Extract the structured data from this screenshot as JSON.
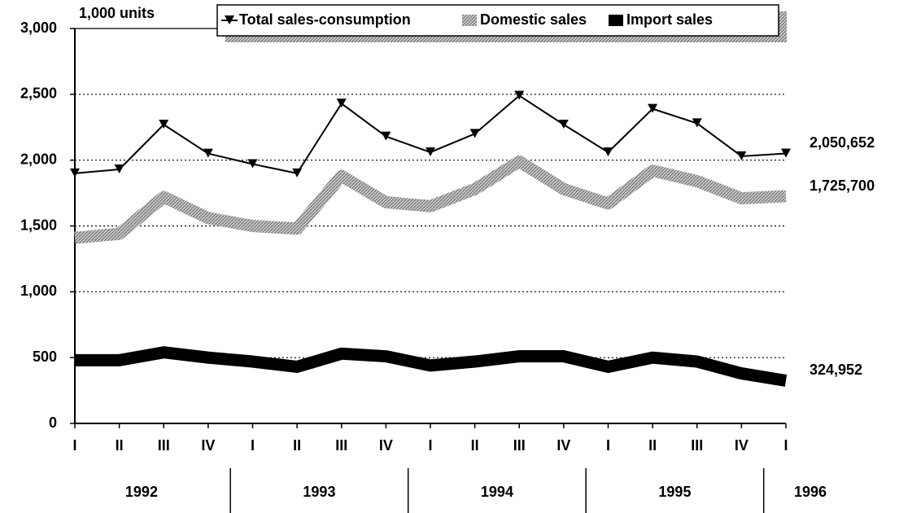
{
  "chart_data": {
    "type": "line",
    "y_label": "1,000 units",
    "categories": [
      "I",
      "II",
      "III",
      "IV",
      "I",
      "II",
      "III",
      "IV",
      "I",
      "II",
      "III",
      "IV",
      "I",
      "II",
      "III",
      "IV",
      "I"
    ],
    "years": [
      "1992",
      null,
      null,
      null,
      "1993",
      null,
      null,
      null,
      "1994",
      null,
      null,
      null,
      "1995",
      null,
      null,
      null,
      "1996"
    ],
    "series": [
      {
        "name": "Total sales-consumption",
        "color": "#000000",
        "line_style": "thin",
        "marker": "triangle-down",
        "values": [
          1900,
          1930,
          2270,
          2050,
          1970,
          1900,
          2430,
          2180,
          2060,
          2200,
          2490,
          2270,
          2060,
          2390,
          2280,
          2030,
          2050.652
        ],
        "end_label": "2,050,652"
      },
      {
        "name": "Domestic sales",
        "color": "#a0a0a0",
        "line_style": "thick",
        "marker": "none",
        "values": [
          1410,
          1440,
          1720,
          1560,
          1500,
          1480,
          1880,
          1680,
          1650,
          1780,
          1990,
          1780,
          1670,
          1920,
          1840,
          1710,
          1725.7
        ],
        "end_label": "1,725,700"
      },
      {
        "name": "Import sales",
        "color": "#000000",
        "line_style": "thick",
        "marker": "none",
        "values": [
          480,
          480,
          540,
          500,
          470,
          430,
          530,
          510,
          440,
          470,
          510,
          510,
          430,
          500,
          470,
          380,
          324.952
        ],
        "end_label": "324,952"
      }
    ],
    "ylim": [
      0,
      3000
    ],
    "yticks": [
      0,
      {
        "value": 500,
        "label": "500"
      },
      {
        "value": 1000,
        "label": "1,000"
      },
      {
        "value": 1500,
        "label": "1,500"
      },
      {
        "value": 2000,
        "label": "2,000"
      },
      {
        "value": 2500,
        "label": "2,500"
      },
      {
        "value": 3000,
        "label": "3,000"
      }
    ],
    "grid": true
  }
}
